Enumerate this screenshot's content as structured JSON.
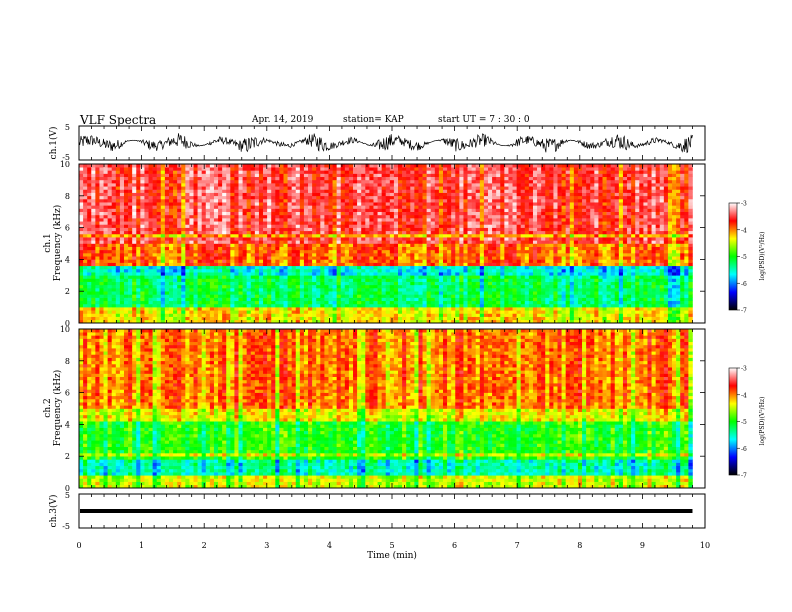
{
  "header": {
    "title": "VLF Spectra",
    "date": "Apr. 14, 2019",
    "station": "station= KAP",
    "start": "start  UT  =   7 : 30 : 0"
  },
  "chart_data": [
    {
      "type": "line",
      "panel": "ch1-waveform",
      "ylabel": "ch.1(V)",
      "ylim": [
        -5,
        5
      ],
      "yticks": [
        "5",
        "-5"
      ],
      "xlim": [
        0,
        10
      ],
      "description_values": "noisy waveform oscillating roughly between -3 and 3 V",
      "series_color": "#000000"
    },
    {
      "type": "heatmap",
      "panel": "ch1-spectrogram",
      "ylabel_lines": [
        "ch.1",
        "Frequency (kHz)"
      ],
      "ylim": [
        0,
        10
      ],
      "yticks": [
        "0",
        "2",
        "4",
        "6",
        "8",
        "10"
      ],
      "xlim": [
        0,
        10
      ],
      "data_end_min": 9.8,
      "colorbar": {
        "label": "log(PSD)(V²/Hz)",
        "range": [
          -7,
          -3
        ],
        "ticks": [
          "-3",
          "-4",
          "-5",
          "-6",
          "-7"
        ],
        "colors": [
          "#000000",
          "#0000ff",
          "#00ffff",
          "#00ff00",
          "#ffff00",
          "#ff0000",
          "#ffffff"
        ]
      }
    },
    {
      "type": "heatmap",
      "panel": "ch2-spectrogram",
      "ylabel_lines": [
        "ch.2",
        "Frequency (kHz)"
      ],
      "ylim": [
        0,
        10
      ],
      "yticks": [
        "0",
        "2",
        "4",
        "6",
        "8",
        "10"
      ],
      "xlim": [
        0,
        10
      ],
      "data_end_min": 9.8,
      "colorbar": {
        "label": "log(PSD)(V²/Hz)",
        "range": [
          -7,
          -3
        ],
        "ticks": [
          "-3",
          "-4",
          "-5",
          "-6",
          "-7"
        ],
        "colors": [
          "#000000",
          "#0000ff",
          "#00ffff",
          "#00ff00",
          "#ffff00",
          "#ff0000",
          "#ffffff"
        ]
      }
    },
    {
      "type": "line",
      "panel": "ch3-waveform",
      "ylabel": "ch.3(V)",
      "ylim": [
        -5,
        5
      ],
      "yticks": [
        "5",
        "-5"
      ],
      "xlim": [
        0,
        10
      ],
      "xlabel": "Time (min)",
      "xticks": [
        "0",
        "1",
        "2",
        "3",
        "4",
        "5",
        "6",
        "7",
        "8",
        "9",
        "10"
      ],
      "constant_value": 0,
      "series_color": "#000000"
    }
  ]
}
